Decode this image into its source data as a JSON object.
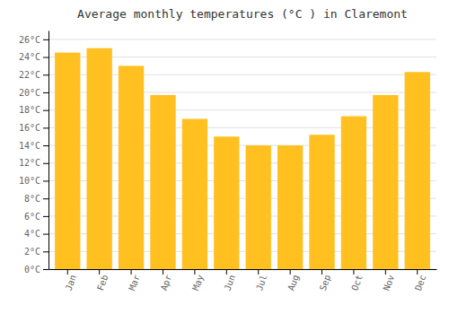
{
  "chart_data": {
    "type": "bar",
    "title": "Average monthly temperatures (°C ) in Claremont",
    "categories": [
      "Jan",
      "Feb",
      "Mar",
      "Apr",
      "May",
      "Jun",
      "Jul",
      "Aug",
      "Sep",
      "Oct",
      "Nov",
      "Dec"
    ],
    "values": [
      24.5,
      25.0,
      23.0,
      19.7,
      17.0,
      15.0,
      14.0,
      14.0,
      15.2,
      17.3,
      19.7,
      22.3
    ],
    "color": "#FFC020",
    "ylim": [
      0,
      27
    ],
    "yticks": [
      {
        "value": 0,
        "label": "0°C"
      },
      {
        "value": 2,
        "label": "2°C"
      },
      {
        "value": 4,
        "label": "4°C"
      },
      {
        "value": 6,
        "label": "6°C"
      },
      {
        "value": 8,
        "label": "8°C"
      },
      {
        "value": 10,
        "label": "10°C"
      },
      {
        "value": 12,
        "label": "12°C"
      },
      {
        "value": 14,
        "label": "14°C"
      },
      {
        "value": 16,
        "label": "16°C"
      },
      {
        "value": 18,
        "label": "18°C"
      },
      {
        "value": 20,
        "label": "20°C"
      },
      {
        "value": 22,
        "label": "22°C"
      },
      {
        "value": 24,
        "label": "24°C"
      },
      {
        "value": 26,
        "label": "26°C"
      }
    ],
    "grid": true
  }
}
